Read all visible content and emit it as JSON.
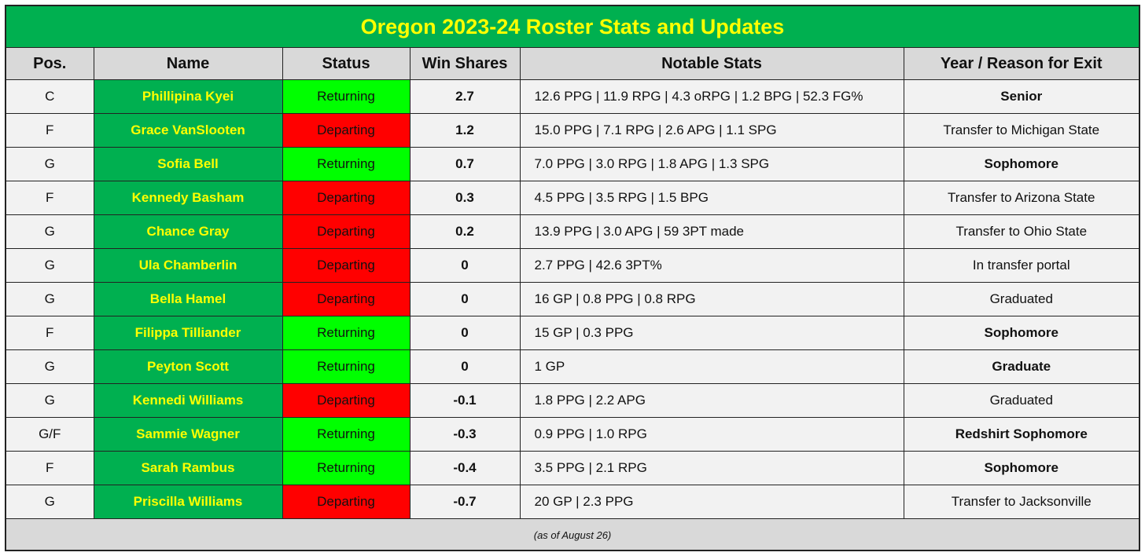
{
  "title": "Oregon 2023-24 Roster Stats and Updates",
  "headers": [
    "Pos.",
    "Name",
    "Status",
    "Win Shares",
    "Notable Stats",
    "Year / Reason for Exit"
  ],
  "colors": {
    "header_green": "#00b050",
    "title_text": "#ffff00",
    "returning": "#00ff00",
    "departing": "#ff0000",
    "header_gray": "#d9d9d9",
    "cell_bg": "#f2f2f2"
  },
  "rows": [
    {
      "pos": "C",
      "name": "Phillipina Kyei",
      "status": "Returning",
      "ws": "2.7",
      "stats": "12.6 PPG | 11.9 RPG | 4.3 oRPG | 1.2 BPG | 52.3 FG%",
      "exit": "Senior",
      "exit_bold": true
    },
    {
      "pos": "F",
      "name": "Grace VanSlooten",
      "status": "Departing",
      "ws": "1.2",
      "stats": "15.0 PPG | 7.1 RPG | 2.6 APG | 1.1 SPG",
      "exit": "Transfer to Michigan State",
      "exit_bold": false
    },
    {
      "pos": "G",
      "name": "Sofia Bell",
      "status": "Returning",
      "ws": "0.7",
      "stats": "7.0 PPG | 3.0 RPG | 1.8 APG | 1.3 SPG",
      "exit": "Sophomore",
      "exit_bold": true
    },
    {
      "pos": "F",
      "name": "Kennedy Basham",
      "status": "Departing",
      "ws": "0.3",
      "stats": "4.5 PPG | 3.5 RPG | 1.5 BPG",
      "exit": "Transfer to Arizona State",
      "exit_bold": false
    },
    {
      "pos": "G",
      "name": "Chance Gray",
      "status": "Departing",
      "ws": "0.2",
      "stats": "13.9 PPG | 3.0 APG | 59 3PT made",
      "exit": "Transfer to Ohio State",
      "exit_bold": false
    },
    {
      "pos": "G",
      "name": "Ula Chamberlin",
      "status": "Departing",
      "ws": "0",
      "stats": "2.7 PPG | 42.6 3PT%",
      "exit": "In transfer portal",
      "exit_bold": false
    },
    {
      "pos": "G",
      "name": "Bella Hamel",
      "status": "Departing",
      "ws": "0",
      "stats": "16 GP | 0.8 PPG | 0.8 RPG",
      "exit": "Graduated",
      "exit_bold": false
    },
    {
      "pos": "F",
      "name": "Filippa Tilliander",
      "status": "Returning",
      "ws": "0",
      "stats": "15 GP | 0.3 PPG",
      "exit": "Sophomore",
      "exit_bold": true
    },
    {
      "pos": "G",
      "name": "Peyton Scott",
      "status": "Returning",
      "ws": "0",
      "stats": "1 GP",
      "exit": "Graduate",
      "exit_bold": true
    },
    {
      "pos": "G",
      "name": "Kennedi Williams",
      "status": "Departing",
      "ws": "-0.1",
      "stats": "1.8 PPG | 2.2 APG",
      "exit": "Graduated",
      "exit_bold": false
    },
    {
      "pos": "G/F",
      "name": "Sammie Wagner",
      "status": "Returning",
      "ws": "-0.3",
      "stats": "0.9 PPG | 1.0 RPG",
      "exit": "Redshirt Sophomore",
      "exit_bold": true
    },
    {
      "pos": "F",
      "name": "Sarah Rambus",
      "status": "Returning",
      "ws": "-0.4",
      "stats": "3.5 PPG | 2.1 RPG",
      "exit": "Sophomore",
      "exit_bold": true
    },
    {
      "pos": "G",
      "name": "Priscilla Williams",
      "status": "Departing",
      "ws": "-0.7",
      "stats": "20 GP | 2.3 PPG",
      "exit": "Transfer to Jacksonville",
      "exit_bold": false
    }
  ],
  "footer": "(as of August 26)"
}
